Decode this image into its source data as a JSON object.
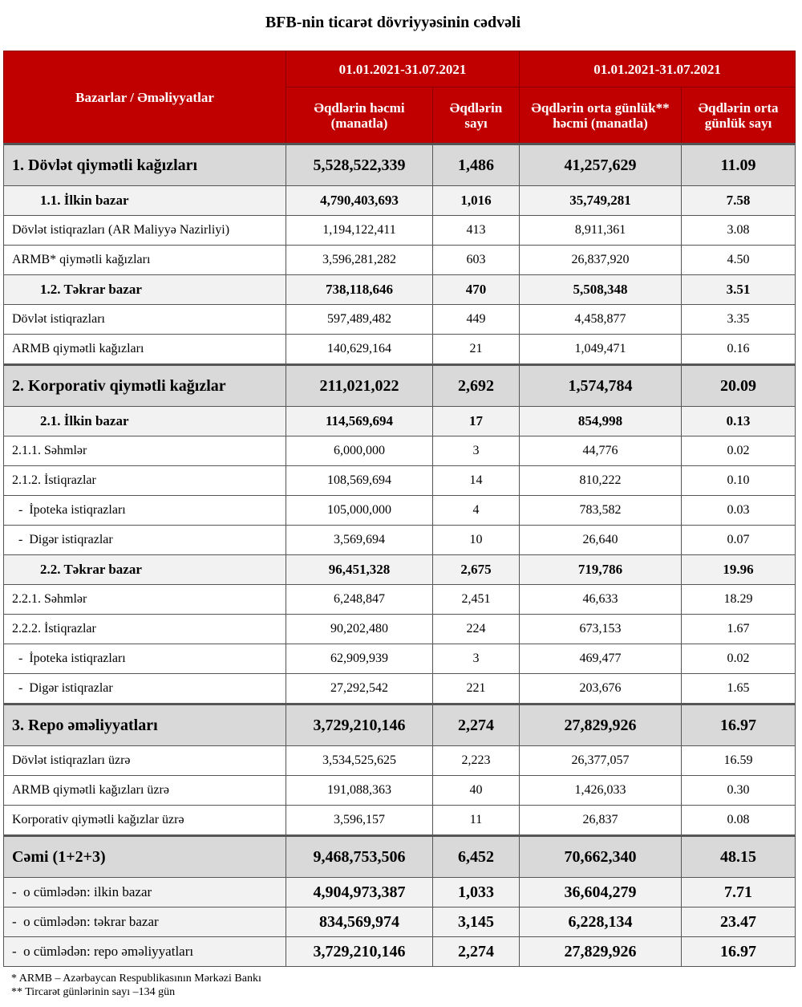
{
  "title": "BFB-nin ticarət dövriyyəsinin cədvəli",
  "header": {
    "col_label": "Bazarlar / Əməliyyatlar",
    "period1": "01.01.2021-31.07.2021",
    "period2": "01.01.2021-31.07.2021",
    "volume": "Əqdlərin həcmi (manatla)",
    "count": "Əqdlərin sayı",
    "avg_volume": "Əqdlərin orta günlük** həcmi (manatla)",
    "avg_count": "Əqdlərin orta günlük sayı"
  },
  "header_color": "#c00000",
  "rows": [
    {
      "type": "major",
      "label": "1. Dövlət qiymətli kağızları",
      "values": [
        "5,528,522,339",
        "1,486",
        "41,257,629",
        "11.09"
      ]
    },
    {
      "type": "sub",
      "label": "1.1. İlkin bazar",
      "values": [
        "4,790,403,693",
        "1,016",
        "35,749,281",
        "7.58"
      ]
    },
    {
      "type": "normal",
      "label": "Dövlət istiqrazları (AR Maliyyə Nazirliyi)",
      "values": [
        "1,194,122,411",
        "413",
        "8,911,361",
        "3.08"
      ]
    },
    {
      "type": "normal",
      "label": "ARMB* qiymətli kağızları",
      "values": [
        "3,596,281,282",
        "603",
        "26,837,920",
        "4.50"
      ]
    },
    {
      "type": "sub",
      "label": "1.2. Təkrar bazar",
      "values": [
        "738,118,646",
        "470",
        "5,508,348",
        "3.51"
      ]
    },
    {
      "type": "normal",
      "label": "Dövlət istiqrazları",
      "values": [
        "597,489,482",
        "449",
        "4,458,877",
        "3.35"
      ]
    },
    {
      "type": "normal",
      "label": "ARMB qiymətli kağızları",
      "values": [
        "140,629,164",
        "21",
        "1,049,471",
        "0.16"
      ]
    },
    {
      "type": "major",
      "label": "2. Korporativ qiymətli kağızlar",
      "values": [
        "211,021,022",
        "2,692",
        "1,574,784",
        "20.09"
      ]
    },
    {
      "type": "sub",
      "label": "2.1. İlkin bazar",
      "values": [
        "114,569,694",
        "17",
        "854,998",
        "0.13"
      ]
    },
    {
      "type": "normal",
      "label": "2.1.1. Səhmlər",
      "values": [
        "6,000,000",
        "3",
        "44,776",
        "0.02"
      ]
    },
    {
      "type": "normal",
      "label": "2.1.2. İstiqrazlar",
      "values": [
        "108,569,694",
        "14",
        "810,222",
        "0.10"
      ]
    },
    {
      "type": "normal",
      "label": "  -  İpoteka istiqrazları",
      "values": [
        "105,000,000",
        "4",
        "783,582",
        "0.03"
      ]
    },
    {
      "type": "normal",
      "label": "  -  Digər istiqrazlar",
      "values": [
        "3,569,694",
        "10",
        "26,640",
        "0.07"
      ]
    },
    {
      "type": "sub",
      "label": "2.2. Təkrar bazar",
      "values": [
        "96,451,328",
        "2,675",
        "719,786",
        "19.96"
      ]
    },
    {
      "type": "normal",
      "label": "2.2.1. Səhmlər",
      "values": [
        "6,248,847",
        "2,451",
        "46,633",
        "18.29"
      ]
    },
    {
      "type": "normal",
      "label": "2.2.2. İstiqrazlar",
      "values": [
        "90,202,480",
        "224",
        "673,153",
        "1.67"
      ]
    },
    {
      "type": "normal",
      "label": "  -  İpoteka istiqrazları",
      "values": [
        "62,909,939",
        "3",
        "469,477",
        "0.02"
      ]
    },
    {
      "type": "normal",
      "label": "  -  Digər istiqrazlar",
      "values": [
        "27,292,542",
        "221",
        "203,676",
        "1.65"
      ]
    },
    {
      "type": "major",
      "label": "3. Repo əməliyyatları",
      "values": [
        "3,729,210,146",
        "2,274",
        "27,829,926",
        "16.97"
      ]
    },
    {
      "type": "normal",
      "label": "Dövlət istiqrazları üzrə",
      "values": [
        "3,534,525,625",
        "2,223",
        "26,377,057",
        "16.59"
      ]
    },
    {
      "type": "normal",
      "label": "ARMB qiymətli kağızları üzrə",
      "values": [
        "191,088,363",
        "40",
        "1,426,033",
        "0.30"
      ]
    },
    {
      "type": "normal",
      "label": "Korporativ qiymətli kağızlar üzrə",
      "values": [
        "3,596,157",
        "11",
        "26,837",
        "0.08"
      ]
    },
    {
      "type": "major",
      "label": "Cəmi (1+2+3)",
      "values": [
        "9,468,753,506",
        "6,452",
        "70,662,340",
        "48.15"
      ]
    },
    {
      "type": "summary",
      "label": "-  o cümlədən: ilkin bazar",
      "values": [
        "4,904,973,387",
        "1,033",
        "36,604,279",
        "7.71"
      ]
    },
    {
      "type": "summary",
      "label": "-  o cümlədən: təkrar bazar",
      "values": [
        "834,569,974",
        "3,145",
        "6,228,134",
        "23.47"
      ]
    },
    {
      "type": "summary",
      "label": "-  o cümlədən: repo əməliyyatları",
      "values": [
        "3,729,210,146",
        "2,274",
        "27,829,926",
        "16.97"
      ]
    }
  ],
  "footnotes": [
    "* ARMB – Azərbaycan Respublikasının Mərkəzi Bankı",
    "** Tircarət günlərinin sayı –134 gün"
  ]
}
